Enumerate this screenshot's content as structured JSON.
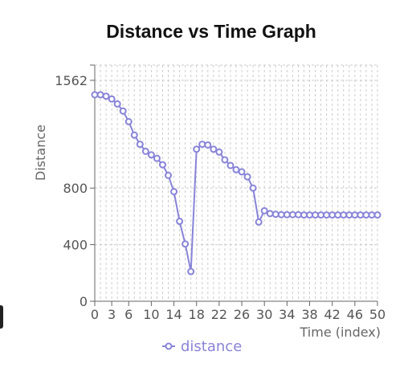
{
  "chart_data": {
    "type": "line",
    "title": "Distance vs Time Graph",
    "xlabel": "Time (index)",
    "ylabel": "Distance",
    "xlim": [
      0,
      50
    ],
    "ylim": [
      0,
      1562
    ],
    "xticks": [
      0,
      3,
      6,
      10,
      14,
      18,
      22,
      26,
      30,
      34,
      38,
      42,
      46,
      50
    ],
    "yticks": [
      0,
      400,
      800,
      1562
    ],
    "grid": true,
    "legend_position": "bottom",
    "series": [
      {
        "name": "distance",
        "color": "#8884d8",
        "x": [
          0,
          1,
          2,
          3,
          4,
          5,
          6,
          7,
          8,
          9,
          10,
          11,
          12,
          13,
          14,
          15,
          16,
          17,
          18,
          19,
          20,
          21,
          22,
          23,
          24,
          25,
          26,
          27,
          28,
          29,
          30,
          31,
          32,
          33,
          34,
          35,
          36,
          37,
          38,
          39,
          40,
          41,
          42,
          43,
          44,
          45,
          46,
          47,
          48,
          49,
          50
        ],
        "values": [
          1460,
          1460,
          1450,
          1430,
          1395,
          1345,
          1270,
          1175,
          1110,
          1060,
          1035,
          1010,
          965,
          890,
          775,
          565,
          405,
          210,
          1075,
          1110,
          1105,
          1075,
          1055,
          1000,
          960,
          930,
          915,
          880,
          800,
          560,
          640,
          620,
          615,
          612,
          612,
          612,
          612,
          610,
          610,
          610,
          610,
          610,
          610,
          610,
          610,
          610,
          610,
          610,
          610,
          610,
          610
        ]
      }
    ]
  }
}
